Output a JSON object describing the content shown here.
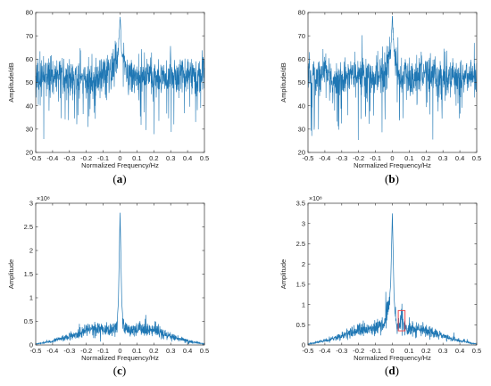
{
  "colors": {
    "series": "#1f77b4",
    "axis": "#333333",
    "highlight": "#e8474d"
  },
  "chart_data": [
    {
      "id": "a",
      "panel_label": "a",
      "type": "line",
      "xlabel": "Normalized Frequency/Hz",
      "ylabel": "Amplitude/dB",
      "xlim": [
        -0.5,
        0.5
      ],
      "ylim": [
        20,
        80
      ],
      "xticks": [
        -0.5,
        -0.4,
        -0.3,
        -0.2,
        -0.1,
        0,
        0.1,
        0.2,
        0.3,
        0.4,
        0.5
      ],
      "xtick_labels": [
        "-0.5",
        "-0.4",
        "-0.3",
        "-0.2",
        "-0.1",
        "0",
        "0.1",
        "0.2",
        "0.3",
        "0.4",
        "0.5"
      ],
      "yticks": [
        20,
        30,
        40,
        50,
        60,
        70,
        80
      ],
      "ytick_labels": [
        "20",
        "30",
        "40",
        "50",
        "60",
        "70",
        "80"
      ],
      "grid": false,
      "exponent": "",
      "description": "noise floor around 52 dB (range ~38-62) with a single peak of about 78 dB at 0",
      "series": [
        {
          "x": [
            -0.5,
            -0.45,
            -0.4,
            -0.35,
            -0.3,
            -0.25,
            -0.2,
            -0.15,
            -0.1,
            -0.05,
            -0.01,
            0,
            0.01,
            0.05,
            0.1,
            0.15,
            0.2,
            0.25,
            0.3,
            0.35,
            0.4,
            0.45,
            0.5
          ],
          "values": [
            52,
            53,
            51,
            54,
            52,
            53,
            52,
            51,
            53,
            54,
            62,
            78,
            62,
            53,
            52,
            53,
            52,
            51,
            53,
            52,
            54,
            52,
            53
          ]
        }
      ]
    },
    {
      "id": "b",
      "panel_label": "b",
      "type": "line",
      "xlabel": "Normalized Frequency/Hz",
      "ylabel": "Amplitude/dB",
      "xlim": [
        -0.5,
        0.5
      ],
      "ylim": [
        20,
        80
      ],
      "xticks": [
        -0.5,
        -0.4,
        -0.3,
        -0.2,
        -0.1,
        0,
        0.1,
        0.2,
        0.3,
        0.4,
        0.5
      ],
      "xtick_labels": [
        "-0.5",
        "-0.4",
        "-0.3",
        "-0.2",
        "-0.1",
        "0",
        "0.1",
        "0.2",
        "0.3",
        "0.4",
        "0.5"
      ],
      "yticks": [
        20,
        30,
        40,
        50,
        60,
        70,
        80
      ],
      "ytick_labels": [
        "20",
        "30",
        "40",
        "50",
        "60",
        "70",
        "80"
      ],
      "grid": false,
      "exponent": "",
      "description": "noise floor around 52 dB with a peak of about 78 dB at 0",
      "series": [
        {
          "x": [
            -0.5,
            -0.45,
            -0.4,
            -0.35,
            -0.3,
            -0.25,
            -0.2,
            -0.15,
            -0.1,
            -0.05,
            -0.01,
            0,
            0.01,
            0.05,
            0.1,
            0.15,
            0.2,
            0.25,
            0.3,
            0.35,
            0.4,
            0.45,
            0.5
          ],
          "values": [
            53,
            52,
            54,
            51,
            52,
            53,
            52,
            54,
            52,
            53,
            63,
            78,
            63,
            52,
            53,
            52,
            54,
            52,
            51,
            53,
            52,
            53,
            52
          ]
        }
      ]
    },
    {
      "id": "c",
      "panel_label": "c",
      "type": "line",
      "xlabel": "Normalized Frequency/Hz",
      "ylabel": "Amplitude",
      "xlim": [
        -0.5,
        0.5
      ],
      "ylim": [
        0,
        3
      ],
      "xticks": [
        -0.5,
        -0.4,
        -0.3,
        -0.2,
        -0.1,
        0,
        0.1,
        0.2,
        0.3,
        0.4,
        0.5
      ],
      "xtick_labels": [
        "-0.5",
        "-0.4",
        "-0.3",
        "-0.2",
        "-0.1",
        "0",
        "0.1",
        "0.2",
        "0.3",
        "0.4",
        "0.5"
      ],
      "yticks": [
        0,
        0.5,
        1,
        1.5,
        2,
        2.5,
        3
      ],
      "ytick_labels": [
        "0",
        "0.5",
        "1",
        "1.5",
        "2",
        "2.5",
        "3"
      ],
      "grid": false,
      "exponent": "×10⁸",
      "description": "values in units of 1e8; broad hump peaking ~0.35 near ±0.15 and a sharp spike of ~2.8 at 0",
      "series": [
        {
          "x": [
            -0.5,
            -0.4,
            -0.3,
            -0.2,
            -0.15,
            -0.1,
            -0.05,
            -0.02,
            -0.01,
            0,
            0.01,
            0.02,
            0.05,
            0.1,
            0.15,
            0.2,
            0.3,
            0.4,
            0.5
          ],
          "values": [
            0.02,
            0.08,
            0.18,
            0.3,
            0.34,
            0.32,
            0.3,
            0.38,
            0.9,
            2.8,
            0.9,
            0.38,
            0.3,
            0.32,
            0.34,
            0.3,
            0.18,
            0.08,
            0.02
          ]
        }
      ]
    },
    {
      "id": "d",
      "panel_label": "d",
      "type": "line",
      "xlabel": "Normalized Frequency/Hz",
      "ylabel": "Amplitude",
      "xlim": [
        -0.5,
        0.5
      ],
      "ylim": [
        0,
        3.5
      ],
      "xticks": [
        -0.5,
        -0.4,
        -0.3,
        -0.2,
        -0.1,
        0,
        0.1,
        0.2,
        0.3,
        0.4,
        0.5
      ],
      "xtick_labels": [
        "-0.5",
        "-0.4",
        "-0.3",
        "-0.2",
        "-0.1",
        "0",
        "0.1",
        "0.2",
        "0.3",
        "0.4",
        "0.5"
      ],
      "yticks": [
        0,
        0.5,
        1,
        1.5,
        2,
        2.5,
        3,
        3.5
      ],
      "ytick_labels": [
        "0",
        "0.5",
        "1",
        "1.5",
        "2",
        "2.5",
        "3",
        "3.5"
      ],
      "grid": false,
      "exponent": "×10⁸",
      "description": "values in units of 1e8; spike of ~3.25 at 0 and a secondary peak of ~0.7 near 0.06 marked by a red box",
      "series": [
        {
          "x": [
            -0.5,
            -0.4,
            -0.3,
            -0.2,
            -0.15,
            -0.1,
            -0.05,
            -0.02,
            -0.01,
            0,
            0.01,
            0.02,
            0.04,
            0.055,
            0.07,
            0.1,
            0.15,
            0.2,
            0.3,
            0.4,
            0.5
          ],
          "values": [
            0.02,
            0.1,
            0.22,
            0.35,
            0.4,
            0.42,
            0.5,
            1.0,
            1.5,
            3.25,
            1.2,
            0.55,
            0.4,
            0.72,
            0.42,
            0.38,
            0.4,
            0.35,
            0.22,
            0.1,
            0.02
          ]
        }
      ],
      "highlight_box": {
        "x": [
          0.035,
          0.075
        ],
        "y": [
          0.35,
          0.85
        ]
      }
    }
  ]
}
